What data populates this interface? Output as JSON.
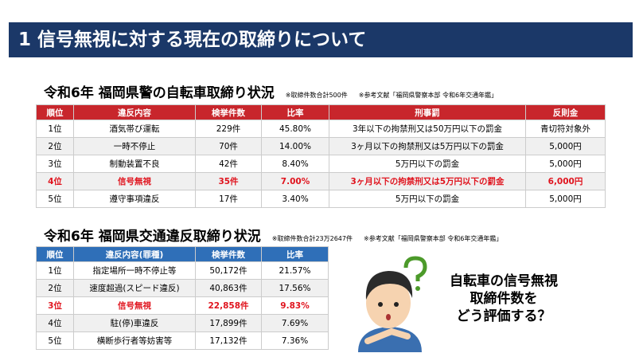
{
  "header": {
    "title": "1 信号無視に対する現在の取締りについて"
  },
  "sections": [
    {
      "title": "令和6年 福岡県警の自転車取締り状況",
      "notes": [
        "※取締件数合計500件",
        "※参考文献「福岡県警察本部 令和6年交通年鑑」"
      ],
      "table": {
        "columns": [
          "順位",
          "違反内容",
          "検挙件数",
          "比率",
          "刑事罰",
          "反則金"
        ],
        "rows": [
          [
            "1位",
            "酒気帯び運転",
            "229件",
            "45.80%",
            "3年以下の拘禁刑又は50万円以下の罰金",
            "青切符対象外"
          ],
          [
            "2位",
            "一時不停止",
            "70件",
            "14.00%",
            "3ヶ月以下の拘禁刑又は5万円以下の罰金",
            "5,000円"
          ],
          [
            "3位",
            "制動装置不良",
            "42件",
            "8.40%",
            "5万円以下の罰金",
            "5,000円"
          ],
          [
            "4位",
            "信号無視",
            "35件",
            "7.00%",
            "3ヶ月以下の拘禁刑又は5万円以下の罰金",
            "6,000円"
          ],
          [
            "5位",
            "遵守事項違反",
            "17件",
            "3.40%",
            "5万円以下の罰金",
            "5,000円"
          ]
        ],
        "highlight_row": 3,
        "header_color": "#c8262c"
      }
    },
    {
      "title": "令和6年 福岡県交通違反取締り状況",
      "notes": [
        "※取締件数合計23万2647件",
        "※参考文献「福岡県警察本部 令和6年交通年鑑」"
      ],
      "table": {
        "columns": [
          "順位",
          "違反内容(罪種)",
          "検挙件数",
          "比率"
        ],
        "rows": [
          [
            "1位",
            "指定場所一時不停止等",
            "50,172件",
            "21.57%"
          ],
          [
            "2位",
            "速度超過(スピード違反)",
            "40,863件",
            "17.56%"
          ],
          [
            "3位",
            "信号無視",
            "22,858件",
            "9.83%"
          ],
          [
            "4位",
            "駐(停)車違反",
            "17,899件",
            "7.69%"
          ],
          [
            "5位",
            "横断歩行者等妨害等",
            "17,132件",
            "7.36%"
          ]
        ],
        "highlight_row": 2,
        "header_color": "#2f6fb8"
      }
    }
  ],
  "callout": {
    "lines": [
      "自転車の信号無視",
      "取締件数を",
      "どう評価する？"
    ]
  }
}
